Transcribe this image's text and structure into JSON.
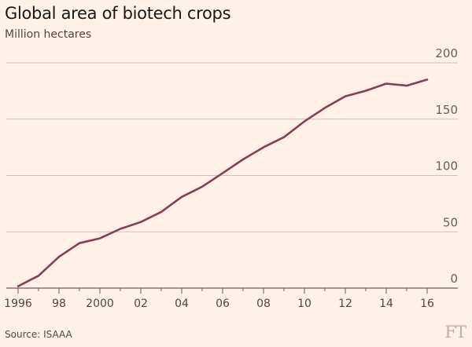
{
  "header": {
    "title": "Global area of biotech crops",
    "subtitle": "Million hectares"
  },
  "footer": {
    "source": "Source: ISAAA",
    "logo_text": "FT"
  },
  "chart_data": {
    "type": "line",
    "title": "Global area of biotech crops",
    "ylabel": "Million hectares",
    "xlabel": "",
    "xlim": [
      1996,
      2016
    ],
    "ylim": [
      0,
      200
    ],
    "grid": true,
    "y_axis_side": "right",
    "x_ticks": [
      {
        "value": 1996,
        "label": "1996"
      },
      {
        "value": 1998,
        "label": "98"
      },
      {
        "value": 2000,
        "label": "2000"
      },
      {
        "value": 2002,
        "label": "02"
      },
      {
        "value": 2004,
        "label": "04"
      },
      {
        "value": 2006,
        "label": "06"
      },
      {
        "value": 2008,
        "label": "08"
      },
      {
        "value": 2010,
        "label": "10"
      },
      {
        "value": 2012,
        "label": "12"
      },
      {
        "value": 2014,
        "label": "14"
      },
      {
        "value": 2016,
        "label": "16"
      }
    ],
    "x_minor_ticks": [
      1997,
      1999,
      2001,
      2003,
      2005,
      2007,
      2009,
      2011,
      2013,
      2015
    ],
    "y_ticks": [
      0,
      50,
      100,
      150,
      200
    ],
    "series": [
      {
        "color": "#8b3a57",
        "x": [
          1996,
          1997,
          1998,
          1999,
          2000,
          2001,
          2002,
          2003,
          2004,
          2005,
          2006,
          2007,
          2008,
          2009,
          2010,
          2011,
          2012,
          2013,
          2014,
          2015,
          2016
        ],
        "y": [
          1.7,
          11,
          27.8,
          39.9,
          44.2,
          52.6,
          58.7,
          67.7,
          81,
          90,
          102,
          114.3,
          125,
          134,
          148,
          160,
          170.3,
          175.2,
          181.5,
          179.7,
          185.1
        ]
      }
    ]
  }
}
